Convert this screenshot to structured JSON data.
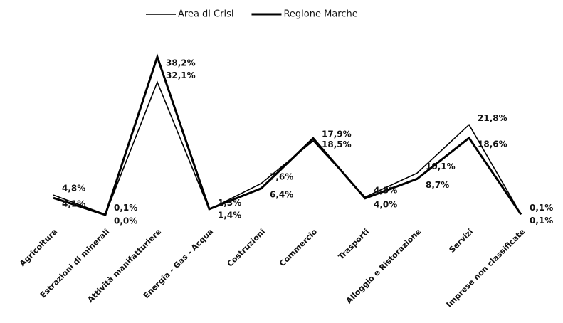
{
  "chart_data": {
    "type": "line",
    "categories": [
      "Agricoltura",
      "Estrazioni di minerali",
      "Attività manifatturiere",
      "Energia - Gas - Acqua",
      "Costruzioni",
      "Commercio",
      "Trasporti",
      "Alloggio e Ristorazione",
      "Servizi",
      "Imprese non classificate"
    ],
    "series": [
      {
        "name": "Area di Crisi",
        "color": "#000000",
        "width": 1.6,
        "values": [
          4.8,
          0.1,
          32.1,
          1.3,
          7.6,
          17.9,
          4.3,
          10.1,
          21.8,
          0.1
        ],
        "value_labels": [
          "4,8%",
          "0,1%",
          "32,1%",
          "1,3%",
          "7,6%",
          "17,9%",
          "4,3%",
          "10,1%",
          "21,8%",
          "0,1%"
        ]
      },
      {
        "name": "Regione Marche",
        "color": "#000000",
        "width": 3,
        "values": [
          4.1,
          0.0,
          38.2,
          1.4,
          6.4,
          18.5,
          4.0,
          8.7,
          18.6,
          0.1
        ],
        "value_labels": [
          "4,1%",
          "0,0%",
          "38,2%",
          "1,4%",
          "6,4%",
          "18,5%",
          "4,0%",
          "8,7%",
          "18,6%",
          "0,1%"
        ]
      }
    ],
    "legend": "top"
  }
}
